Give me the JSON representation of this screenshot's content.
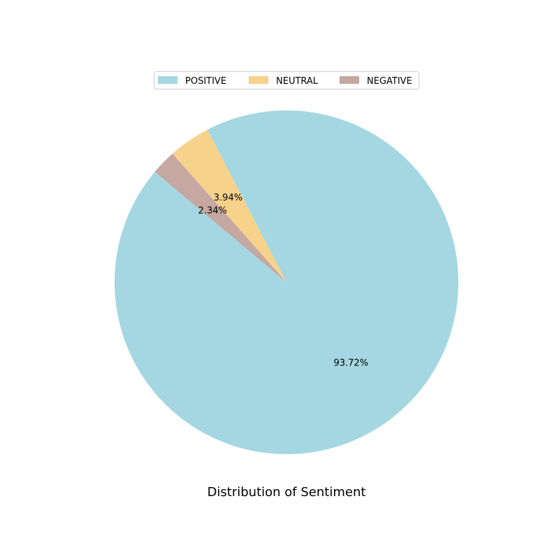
{
  "chart_data": {
    "type": "pie",
    "title": "Distribution of Sentiment",
    "legend_position": "top-center",
    "slices": [
      {
        "name": "POSITIVE",
        "value": 93.72,
        "label": "93.72%",
        "color": "#a4d7e2"
      },
      {
        "name": "NEUTRAL",
        "value": 3.94,
        "label": "3.94%",
        "color": "#f7d28b"
      },
      {
        "name": "NEGATIVE",
        "value": 2.34,
        "label": "2.34%",
        "color": "#c5a8a1"
      }
    ]
  }
}
